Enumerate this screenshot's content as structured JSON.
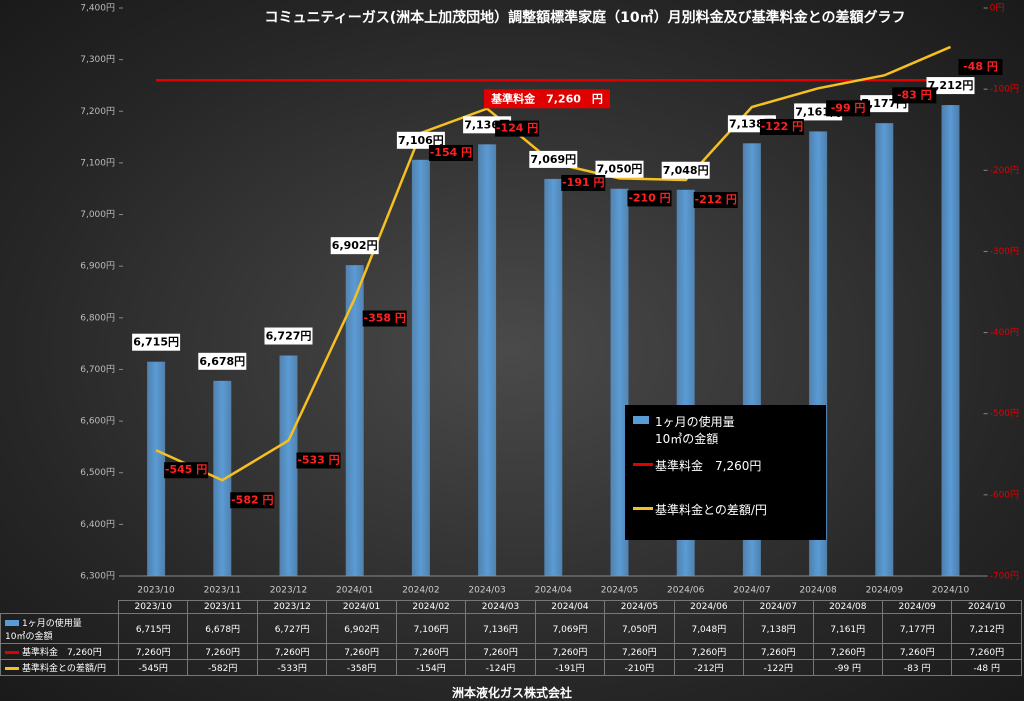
{
  "chart_data": {
    "type": "bar",
    "title": "コミュニティーガス(洲本上加茂団地）調整額標準家庭（10㎥）月別料金及び基準料金との差額グラフ",
    "annotation": "基準料金　7,260　円",
    "categories": [
      "2023/10",
      "2023/11",
      "2023/12",
      "2024/01",
      "2024/02",
      "2024/03",
      "2024/04",
      "2024/05",
      "2024/06",
      "2024/07",
      "2024/08",
      "2024/09",
      "2024/10"
    ],
    "series": [
      {
        "name": "1ヶ月の使用量\n10㎥の金額",
        "type": "bar",
        "color": "#5b9bd5",
        "values": [
          6715,
          6678,
          6727,
          6902,
          7106,
          7136,
          7069,
          7050,
          7048,
          7138,
          7161,
          7177,
          7212
        ],
        "value_labels": [
          "6,715円",
          "6,678円",
          "6,727円",
          "6,902円",
          "7,106円",
          "7,136円",
          "7,069円",
          "7,050円",
          "7,048円",
          "7,138円",
          "7,161円",
          "7,177円",
          "7,212円"
        ]
      },
      {
        "name": "基準料金　7,260円",
        "type": "line",
        "color": "#e00000",
        "values": [
          7260,
          7260,
          7260,
          7260,
          7260,
          7260,
          7260,
          7260,
          7260,
          7260,
          7260,
          7260,
          7260
        ],
        "value_labels": [
          "7,260円",
          "7,260円",
          "7,260円",
          "7,260円",
          "7,260円",
          "7,260円",
          "7,260円",
          "7,260円",
          "7,260円",
          "7,260円",
          "7,260円",
          "7,260円",
          "7,260円"
        ]
      },
      {
        "name": "基準料金との差額/円",
        "type": "line",
        "axis": "y2",
        "color": "#f5c020",
        "values": [
          -545,
          -582,
          -533,
          -358,
          -154,
          -124,
          -191,
          -210,
          -212,
          -122,
          -99,
          -83,
          -48
        ],
        "value_labels": [
          "-545 円",
          "-582 円",
          "-533 円",
          "-358 円",
          "-154 円",
          "-124 円",
          "-191 円",
          "-210 円",
          "-212 円",
          "-122 円",
          "-99 円",
          "-83 円",
          "-48 円"
        ]
      }
    ],
    "ylim": [
      6300,
      7400
    ],
    "yticks": [
      {
        "value": 6300,
        "label": "6,300円"
      },
      {
        "value": 6400,
        "label": "6,400円"
      },
      {
        "value": 6500,
        "label": "6,500円"
      },
      {
        "value": 6600,
        "label": "6,600円"
      },
      {
        "value": 6700,
        "label": "6,700円"
      },
      {
        "value": 6800,
        "label": "6,800円"
      },
      {
        "value": 6900,
        "label": "6,900円"
      },
      {
        "value": 7000,
        "label": "7,000円"
      },
      {
        "value": 7100,
        "label": "7,100円"
      },
      {
        "value": 7200,
        "label": "7,200円"
      },
      {
        "value": 7300,
        "label": "7,300円"
      },
      {
        "value": 7400,
        "label": "7,400円"
      }
    ],
    "y2lim": [
      -700,
      0
    ],
    "y2ticks": [
      {
        "value": -700,
        "label": "-700円"
      },
      {
        "value": -600,
        "label": "-600円"
      },
      {
        "value": -500,
        "label": "-500円"
      },
      {
        "value": -400,
        "label": "-400円"
      },
      {
        "value": -300,
        "label": "-300円"
      },
      {
        "value": -200,
        "label": "-200円"
      },
      {
        "value": -100,
        "label": "-100円"
      },
      {
        "value": 0,
        "label": "0円"
      }
    ],
    "legend": "inside",
    "data_table": {
      "diff_labels": [
        "-545円",
        "-582円",
        "-533円",
        "-358円",
        "-154円",
        "-124円",
        "-191円",
        "-210円",
        "-212円",
        "-122円",
        "-99 円",
        "-83 円",
        "-48 円"
      ]
    }
  },
  "footer": "洲本液化ガス株式会社"
}
